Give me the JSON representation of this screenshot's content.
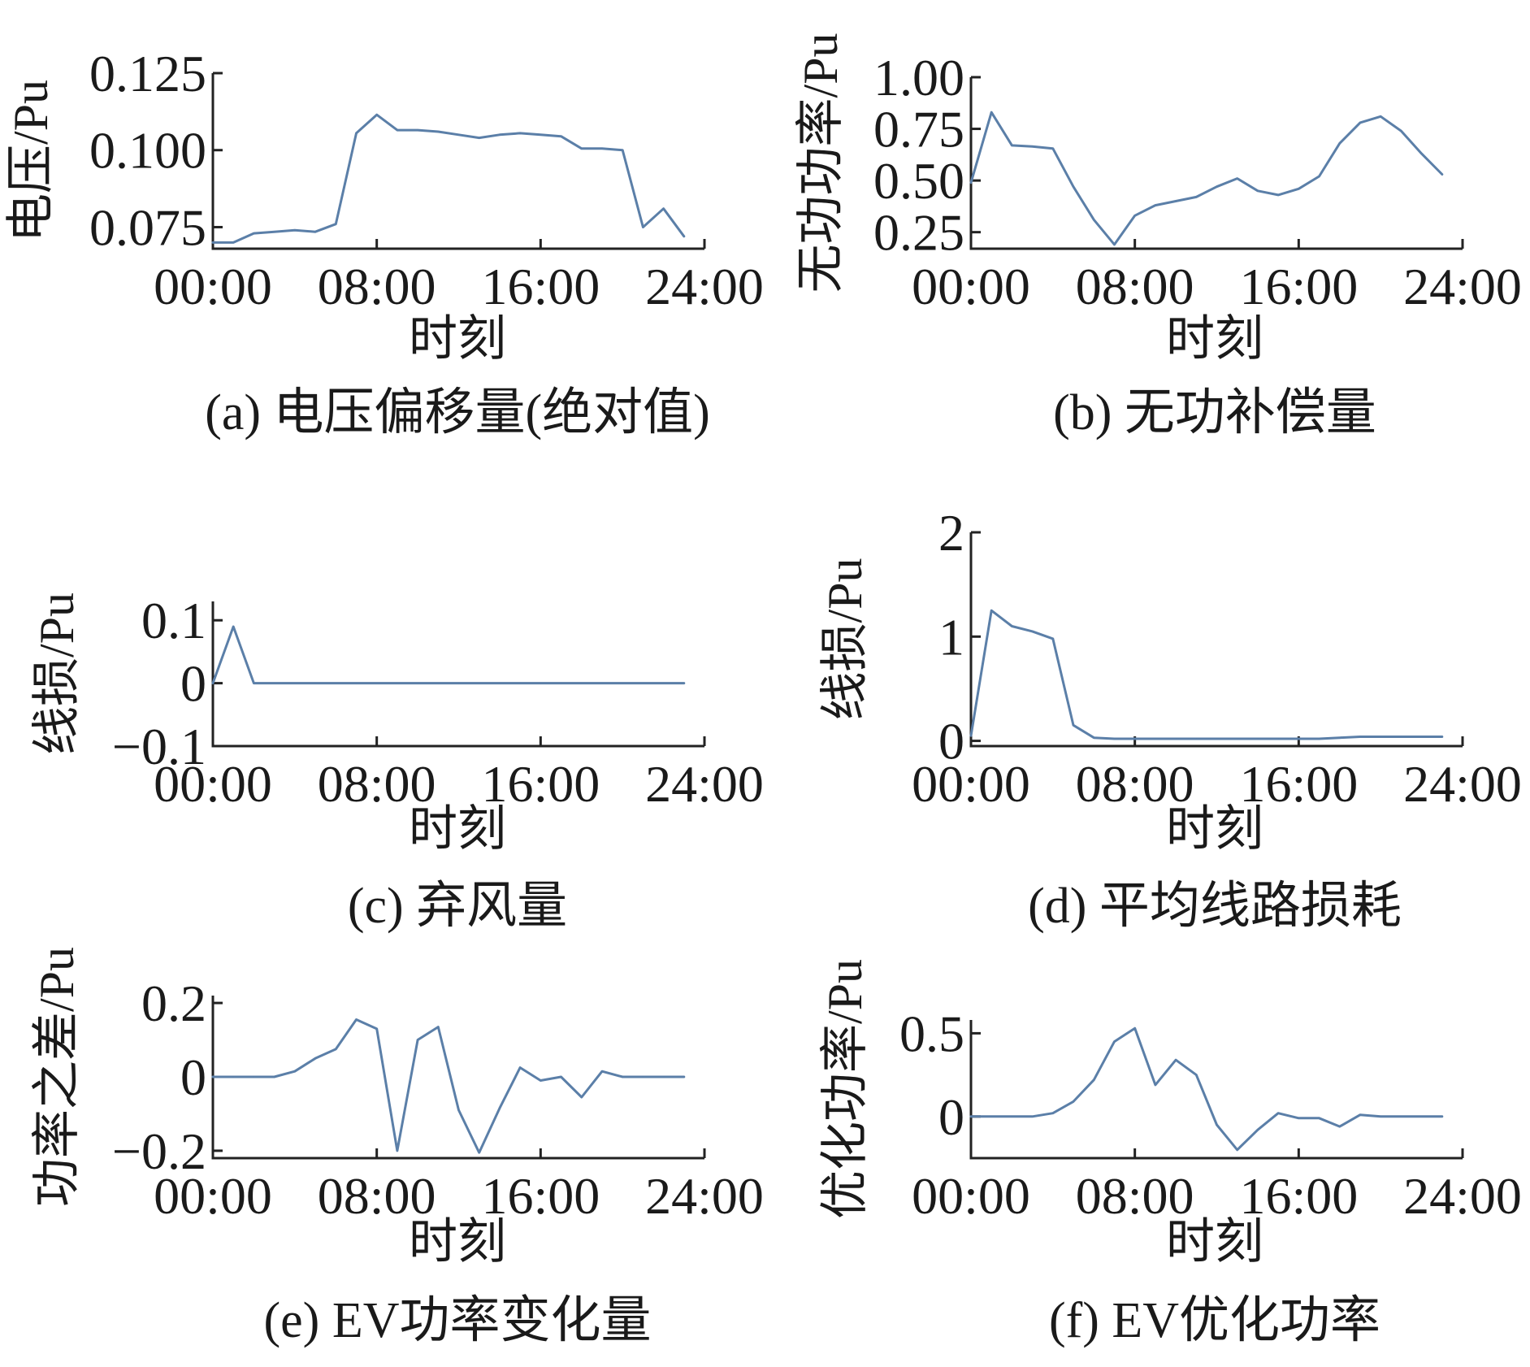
{
  "colors": {
    "series": "#5b7fa8",
    "axis": "#222222",
    "text": "#1a1a1a"
  },
  "chart_data": [
    {
      "id": "a",
      "type": "line",
      "caption": "(a) 电压偏移量(绝对值)",
      "xlabel": "时刻",
      "ylabel": "电压/Pu",
      "xlim": [
        0,
        24
      ],
      "ylim": [
        0.068,
        0.125
      ],
      "x_ticks": [
        0,
        8,
        16,
        24
      ],
      "x_tick_labels": [
        "00:00",
        "08:00",
        "16:00",
        "24:00"
      ],
      "y_ticks": [
        0.075,
        0.1,
        0.125
      ],
      "y_tick_labels": [
        "0.075",
        "0.100",
        "0.125"
      ],
      "series": [
        {
          "x": [
            0,
            1,
            2,
            3,
            4,
            5,
            6,
            7,
            8,
            9,
            10,
            11,
            12,
            13,
            14,
            15,
            16,
            17,
            18,
            19,
            20,
            21,
            22,
            23
          ],
          "y": [
            0.07,
            0.07,
            0.073,
            0.0735,
            0.074,
            0.0735,
            0.076,
            0.1055,
            0.1115,
            0.1065,
            0.1065,
            0.106,
            0.105,
            0.104,
            0.105,
            0.1055,
            0.105,
            0.1045,
            0.1005,
            0.1005,
            0.1,
            0.075,
            0.081,
            0.072
          ]
        }
      ]
    },
    {
      "id": "b",
      "type": "line",
      "caption": "(b) 无功补偿量",
      "xlabel": "时刻",
      "ylabel": "无功功率/Pu",
      "xlim": [
        0,
        24
      ],
      "ylim": [
        0.17,
        1.0
      ],
      "x_ticks": [
        0,
        8,
        16,
        24
      ],
      "x_tick_labels": [
        "00:00",
        "08:00",
        "16:00",
        "24:00"
      ],
      "y_ticks": [
        0.25,
        0.5,
        0.75,
        1.0
      ],
      "y_tick_labels": [
        "0.25",
        "0.50",
        "0.75",
        "1.00"
      ],
      "series": [
        {
          "x": [
            0,
            1,
            2,
            3,
            4,
            5,
            6,
            7,
            8,
            9,
            10,
            11,
            12,
            13,
            14,
            15,
            16,
            17,
            18,
            19,
            20,
            21,
            22,
            23
          ],
          "y": [
            0.49,
            0.83,
            0.67,
            0.665,
            0.655,
            0.47,
            0.31,
            0.19,
            0.33,
            0.38,
            0.4,
            0.42,
            0.47,
            0.51,
            0.45,
            0.43,
            0.46,
            0.52,
            0.68,
            0.78,
            0.81,
            0.74,
            0.63,
            0.53
          ]
        }
      ]
    },
    {
      "id": "c",
      "type": "line",
      "caption": "(c) 弃风量",
      "xlabel": "时刻",
      "ylabel": "线损/Pu",
      "xlim": [
        0,
        24
      ],
      "ylim": [
        -0.1,
        0.13
      ],
      "x_ticks": [
        0,
        8,
        16,
        24
      ],
      "x_tick_labels": [
        "00:00",
        "08:00",
        "16:00",
        "24:00"
      ],
      "y_ticks": [
        -0.1,
        0,
        0.1
      ],
      "y_tick_labels": [
        "−0.1",
        "0",
        "0.1"
      ],
      "series": [
        {
          "x": [
            0,
            1,
            2,
            3,
            4,
            5,
            6,
            7,
            8,
            9,
            10,
            11,
            12,
            13,
            14,
            15,
            16,
            17,
            18,
            19,
            20,
            21,
            22,
            23
          ],
          "y": [
            0,
            0.09,
            0,
            0,
            0,
            0,
            0,
            0,
            0,
            0,
            0,
            0,
            0,
            0,
            0,
            0,
            0,
            0,
            0,
            0,
            0,
            0,
            0,
            0
          ]
        }
      ]
    },
    {
      "id": "d",
      "type": "line",
      "caption": "(d) 平均线路损耗",
      "xlabel": "时刻",
      "ylabel": "线损/Pu",
      "xlim": [
        0,
        24
      ],
      "ylim": [
        -0.05,
        2.0
      ],
      "x_ticks": [
        0,
        8,
        16,
        24
      ],
      "x_tick_labels": [
        "00:00",
        "08:00",
        "16:00",
        "24:00"
      ],
      "y_ticks": [
        0,
        1,
        2
      ],
      "y_tick_labels": [
        "0",
        "1",
        "2"
      ],
      "series": [
        {
          "x": [
            0,
            1,
            2,
            3,
            4,
            5,
            6,
            7,
            8,
            9,
            10,
            11,
            12,
            13,
            14,
            15,
            16,
            17,
            18,
            19,
            20,
            21,
            22,
            23
          ],
          "y": [
            0.05,
            1.25,
            1.1,
            1.05,
            0.98,
            0.15,
            0.03,
            0.02,
            0.02,
            0.02,
            0.02,
            0.02,
            0.02,
            0.02,
            0.02,
            0.02,
            0.02,
            0.02,
            0.03,
            0.04,
            0.04,
            0.04,
            0.04,
            0.04
          ]
        }
      ]
    },
    {
      "id": "e",
      "type": "line",
      "caption": "(e) EV功率变化量",
      "xlabel": "时刻",
      "ylabel": "功率之差/Pu",
      "xlim": [
        0,
        24
      ],
      "ylim": [
        -0.22,
        0.22
      ],
      "x_ticks": [
        0,
        8,
        16,
        24
      ],
      "x_tick_labels": [
        "00:00",
        "08:00",
        "16:00",
        "24:00"
      ],
      "y_ticks": [
        -0.2,
        0,
        0.2
      ],
      "y_tick_labels": [
        "−0.2",
        "0",
        "0.2"
      ],
      "series": [
        {
          "x": [
            0,
            1,
            2,
            3,
            4,
            5,
            6,
            7,
            8,
            9,
            10,
            11,
            12,
            13,
            14,
            15,
            16,
            17,
            18,
            19,
            20,
            21,
            22,
            23
          ],
          "y": [
            0,
            0,
            0,
            0,
            0.015,
            0.05,
            0.075,
            0.155,
            0.13,
            -0.2,
            0.1,
            0.135,
            -0.09,
            -0.205,
            -0.085,
            0.025,
            -0.01,
            0,
            -0.055,
            0.015,
            0,
            0,
            0,
            0
          ]
        }
      ]
    },
    {
      "id": "f",
      "type": "line",
      "caption": "(f) EV优化功率",
      "xlabel": "时刻",
      "ylabel": "优化功率/Pu",
      "xlim": [
        0,
        24
      ],
      "ylim": [
        -0.25,
        0.58
      ],
      "x_ticks": [
        0,
        8,
        16,
        24
      ],
      "x_tick_labels": [
        "00:00",
        "08:00",
        "16:00",
        "24:00"
      ],
      "y_ticks": [
        0,
        0.5
      ],
      "y_tick_labels": [
        "0",
        "0.5"
      ],
      "series": [
        {
          "x": [
            0,
            1,
            2,
            3,
            4,
            5,
            6,
            7,
            8,
            9,
            10,
            11,
            12,
            13,
            14,
            15,
            16,
            17,
            18,
            19,
            20,
            21,
            22,
            23
          ],
          "y": [
            0,
            0,
            0,
            0,
            0.02,
            0.09,
            0.22,
            0.45,
            0.53,
            0.19,
            0.34,
            0.25,
            -0.05,
            -0.2,
            -0.08,
            0.02,
            -0.01,
            -0.01,
            -0.06,
            0.01,
            0,
            0,
            0,
            0
          ]
        }
      ]
    }
  ]
}
